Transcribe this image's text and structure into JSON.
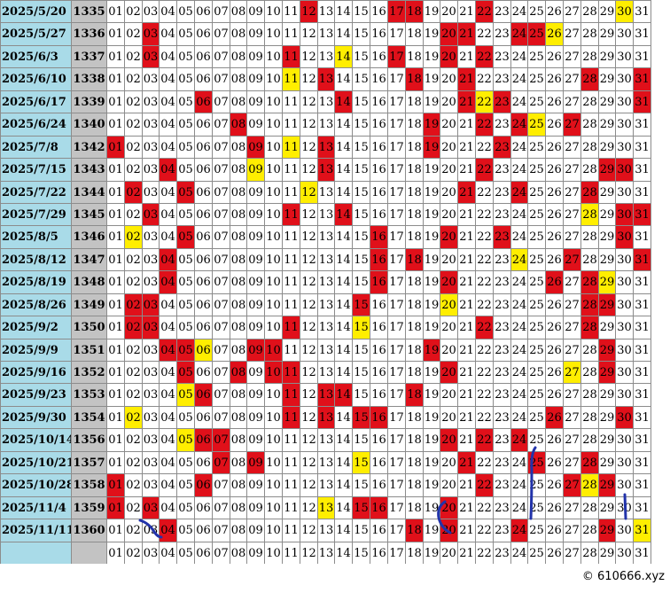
{
  "grid": {
    "numbers": [
      "01",
      "02",
      "03",
      "04",
      "05",
      "06",
      "07",
      "08",
      "09",
      "10",
      "11",
      "12",
      "13",
      "14",
      "15",
      "16",
      "17",
      "18",
      "19",
      "20",
      "21",
      "22",
      "23",
      "24",
      "25",
      "26",
      "27",
      "28",
      "29",
      "30",
      "31"
    ],
    "colors": {
      "hot": "#e0101a",
      "warm": "#ffee00",
      "date_bg": "#a9dbe8",
      "issue_bg": "#c3c3c3",
      "ink": "#2233aa"
    },
    "rows": [
      {
        "date": "2025/5/20",
        "issue": "1335",
        "hot": [
          12,
          17,
          18,
          22
        ],
        "warm": [
          30
        ]
      },
      {
        "date": "2025/5/27",
        "issue": "1336",
        "hot": [
          3,
          20,
          21,
          24,
          25
        ],
        "warm": [
          26
        ]
      },
      {
        "date": "2025/6/3",
        "issue": "1337",
        "hot": [
          3,
          11,
          17,
          20,
          22
        ],
        "warm": [
          14
        ]
      },
      {
        "date": "2025/6/10",
        "issue": "1338",
        "hot": [
          13,
          18,
          21,
          28,
          31
        ],
        "warm": [
          11
        ]
      },
      {
        "date": "2025/6/17",
        "issue": "1339",
        "hot": [
          6,
          14,
          21,
          23,
          31
        ],
        "warm": [
          22
        ]
      },
      {
        "date": "2025/6/24",
        "issue": "1340",
        "hot": [
          8,
          19,
          22,
          24,
          27
        ],
        "warm": [
          25
        ]
      },
      {
        "date": "2025/7/8",
        "issue": "1342",
        "hot": [
          1,
          9,
          13,
          19,
          23
        ],
        "warm": [
          11
        ]
      },
      {
        "date": "2025/7/15",
        "issue": "1343",
        "hot": [
          4,
          13,
          22,
          29,
          30
        ],
        "warm": [
          9
        ]
      },
      {
        "date": "2025/7/22",
        "issue": "1344",
        "hot": [
          2,
          5,
          21,
          24,
          28
        ],
        "warm": [
          12
        ]
      },
      {
        "date": "2025/7/29",
        "issue": "1345",
        "hot": [
          3,
          11,
          14,
          30,
          31
        ],
        "warm": [
          28
        ]
      },
      {
        "date": "2025/8/5",
        "issue": "1346",
        "hot": [
          5,
          16,
          20,
          23,
          30
        ],
        "warm": [
          2
        ]
      },
      {
        "date": "2025/8/12",
        "issue": "1347",
        "hot": [
          4,
          16,
          18,
          27,
          31
        ],
        "warm": [
          24
        ]
      },
      {
        "date": "2025/8/19",
        "issue": "1348",
        "hot": [
          4,
          16,
          20,
          26,
          28
        ],
        "warm": [
          29
        ]
      },
      {
        "date": "2025/8/26",
        "issue": "1349",
        "hot": [
          2,
          3,
          15,
          28,
          29
        ],
        "warm": [
          20
        ]
      },
      {
        "date": "2025/9/2",
        "issue": "1350",
        "hot": [
          2,
          3,
          11,
          22,
          28
        ],
        "warm": [
          15
        ]
      },
      {
        "date": "2025/9/9",
        "issue": "1351",
        "hot": [
          4,
          5,
          9,
          10,
          19,
          29
        ],
        "warm": [
          6
        ]
      },
      {
        "date": "2025/9/16",
        "issue": "1352",
        "hot": [
          5,
          8,
          10,
          11,
          20,
          29
        ],
        "warm": [
          27
        ]
      },
      {
        "date": "2025/9/23",
        "issue": "1353",
        "hot": [
          6,
          11,
          13,
          14,
          18
        ],
        "warm": [
          5
        ]
      },
      {
        "date": "2025/9/30",
        "issue": "1354",
        "hot": [
          11,
          13,
          15,
          16,
          26,
          30
        ],
        "warm": [
          2
        ]
      },
      {
        "date": "2025/10/14",
        "issue": "1356",
        "hot": [
          6,
          7,
          20,
          22,
          24
        ],
        "warm": [
          5
        ]
      },
      {
        "date": "2025/10/21",
        "issue": "1357",
        "hot": [
          7,
          9,
          21,
          25,
          28
        ],
        "warm": [
          15
        ]
      },
      {
        "date": "2025/10/28",
        "issue": "1358",
        "hot": [
          1,
          6,
          22,
          27,
          29
        ],
        "warm": [
          28
        ]
      },
      {
        "date": "2025/11/4",
        "issue": "1359",
        "hot": [
          1,
          3,
          15,
          16,
          20
        ],
        "warm": [
          13
        ]
      },
      {
        "date": "2025/11/11",
        "issue": "1360",
        "hot": [
          4,
          18,
          20,
          24,
          29
        ],
        "warm": [
          31
        ]
      }
    ]
  },
  "footer": {
    "copyright": "© 610666.xyz"
  }
}
